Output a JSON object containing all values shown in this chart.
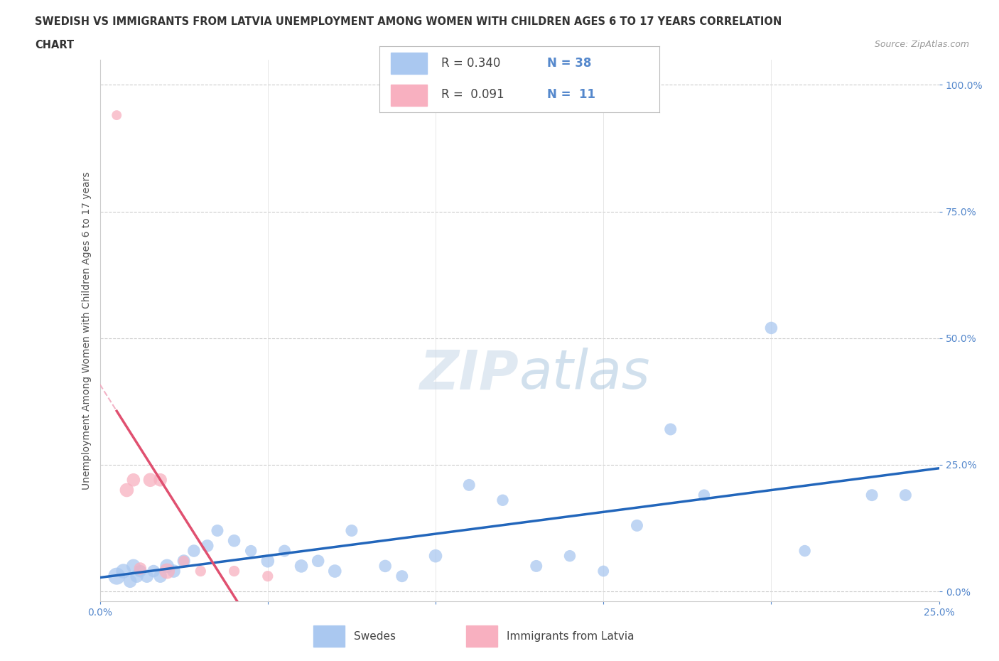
{
  "title_line1": "SWEDISH VS IMMIGRANTS FROM LATVIA UNEMPLOYMENT AMONG WOMEN WITH CHILDREN AGES 6 TO 17 YEARS CORRELATION",
  "title_line2": "CHART",
  "source": "Source: ZipAtlas.com",
  "ylabel": "Unemployment Among Women with Children Ages 6 to 17 years",
  "xlim": [
    0.0,
    0.25
  ],
  "ylim": [
    -0.02,
    1.05
  ],
  "xticks": [
    0.0,
    0.05,
    0.1,
    0.15,
    0.2,
    0.25
  ],
  "yticks": [
    0.0,
    0.25,
    0.5,
    0.75,
    1.0
  ],
  "ytick_labels": [
    "0.0%",
    "25.0%",
    "50.0%",
    "75.0%",
    "100.0%"
  ],
  "xtick_labels": [
    "0.0%",
    "",
    "",
    "",
    "",
    "25.0%"
  ],
  "background_color": "#ffffff",
  "grid_color": "#dddddd",
  "watermark": "ZIPatlas",
  "watermark_color": "#c8d8e8",
  "swedes_color": "#aac8f0",
  "latvians_color": "#f8b0c0",
  "swedes_line_color": "#2266bb",
  "latvians_line_color": "#e05070",
  "latvians_dash_color": "#f0a0b8",
  "legend_R_swedes": "0.340",
  "legend_N_swedes": "38",
  "legend_R_latvians": "0.091",
  "legend_N_latvians": "11",
  "legend_label_swedes": "Swedes",
  "legend_label_latvians": "Immigrants from Latvia",
  "swedes_x": [
    0.005,
    0.007,
    0.009,
    0.01,
    0.011,
    0.012,
    0.014,
    0.016,
    0.018,
    0.02,
    0.022,
    0.025,
    0.028,
    0.032,
    0.035,
    0.04,
    0.045,
    0.05,
    0.055,
    0.06,
    0.065,
    0.07,
    0.075,
    0.085,
    0.09,
    0.1,
    0.11,
    0.12,
    0.13,
    0.14,
    0.15,
    0.16,
    0.17,
    0.18,
    0.2,
    0.21,
    0.23,
    0.24
  ],
  "swedes_y": [
    0.03,
    0.04,
    0.02,
    0.05,
    0.03,
    0.04,
    0.03,
    0.04,
    0.03,
    0.05,
    0.04,
    0.06,
    0.08,
    0.09,
    0.12,
    0.1,
    0.08,
    0.06,
    0.08,
    0.05,
    0.06,
    0.04,
    0.12,
    0.05,
    0.03,
    0.07,
    0.21,
    0.18,
    0.05,
    0.07,
    0.04,
    0.13,
    0.32,
    0.19,
    0.52,
    0.08,
    0.19,
    0.19
  ],
  "swedes_sizes": [
    300,
    220,
    180,
    200,
    180,
    160,
    180,
    160,
    180,
    200,
    180,
    170,
    160,
    160,
    150,
    160,
    140,
    180,
    150,
    180,
    160,
    180,
    150,
    160,
    150,
    180,
    150,
    140,
    150,
    140,
    130,
    150,
    150,
    140,
    160,
    140,
    150,
    150
  ],
  "latvians_x": [
    0.005,
    0.008,
    0.01,
    0.012,
    0.015,
    0.018,
    0.02,
    0.025,
    0.03,
    0.04,
    0.05
  ],
  "latvians_y": [
    0.94,
    0.2,
    0.22,
    0.045,
    0.22,
    0.22,
    0.04,
    0.06,
    0.04,
    0.04,
    0.03
  ],
  "latvians_sizes": [
    100,
    200,
    180,
    160,
    200,
    180,
    250,
    120,
    120,
    120,
    120
  ]
}
